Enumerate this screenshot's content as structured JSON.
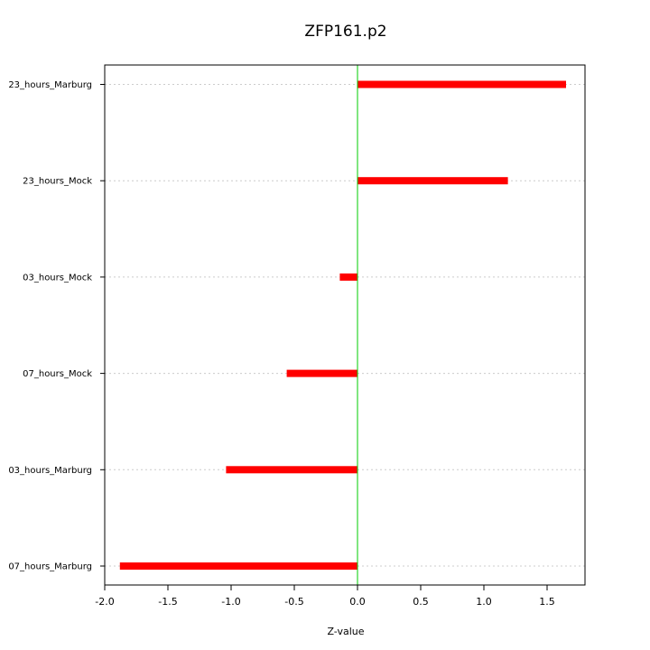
{
  "chart_data": {
    "type": "bar",
    "orientation": "horizontal",
    "title": "ZFP161.p2",
    "xlabel": "Z-value",
    "ylabel": "",
    "xlim": [
      -2.0,
      1.8
    ],
    "x_ticks": [
      -2.0,
      -1.5,
      -1.0,
      -0.5,
      0.0,
      0.5,
      1.0,
      1.5
    ],
    "x_tick_labels": [
      "-2.0",
      "-1.5",
      "-1.0",
      "-0.5",
      "0.0",
      "0.5",
      "1.0",
      "1.5"
    ],
    "categories": [
      "23_hours_Marburg",
      "23_hours_Mock",
      "03_hours_Mock",
      "07_hours_Mock",
      "03_hours_Marburg",
      "07_hours_Marburg"
    ],
    "values": [
      1.65,
      1.19,
      -0.14,
      -0.56,
      -1.04,
      -1.88
    ],
    "reference_line_x": 0.0,
    "colors": {
      "bar": "#ff0000",
      "reference_line": "#00cc00",
      "grid": "#cccccc"
    },
    "grid": "horizontal-dotted"
  }
}
